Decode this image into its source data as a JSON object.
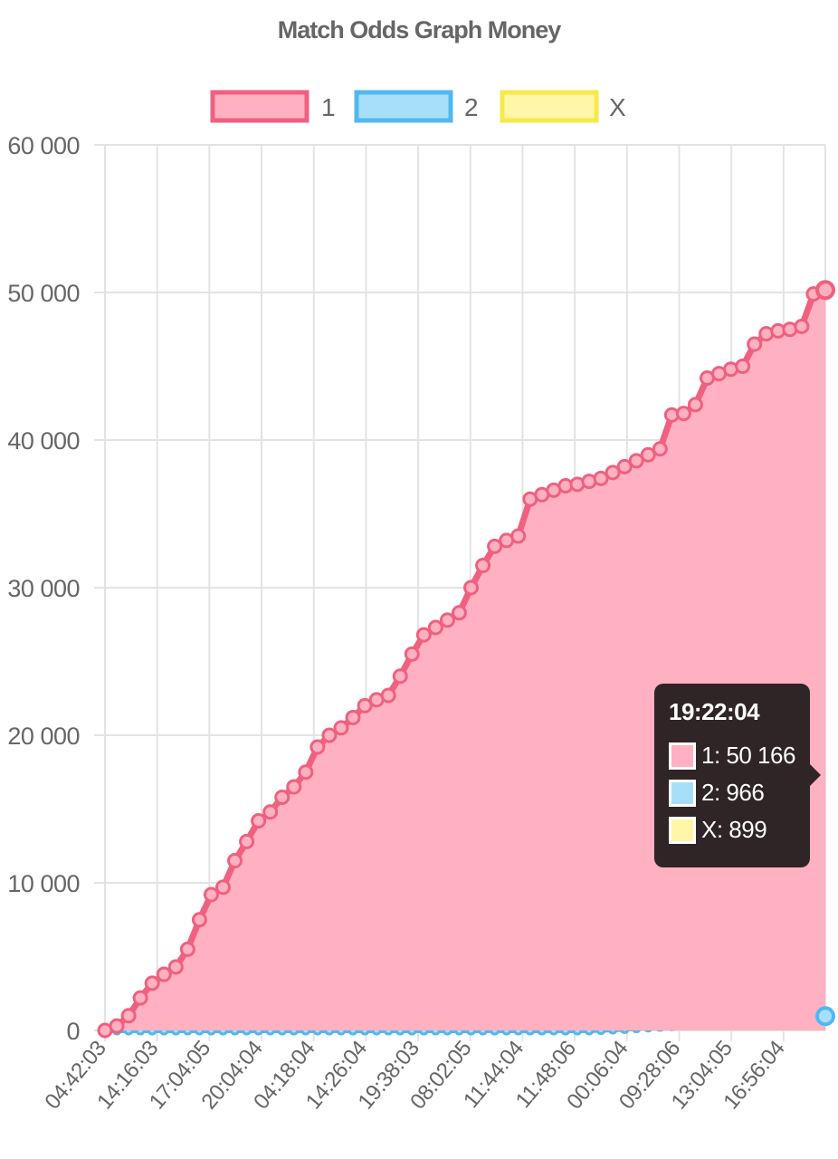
{
  "chart_data": {
    "type": "area",
    "title": "Match Odds Graph Money",
    "legend_position": "top",
    "grid": true,
    "xlabel": "",
    "ylabel": "",
    "ylim": [
      0,
      60000
    ],
    "yticks": [
      "60 000",
      "50 000",
      "40 000",
      "30 000",
      "20 000",
      "10 000",
      "0"
    ],
    "x_tick_labels": [
      "04:42:03",
      "14:16:03",
      "17:04:05",
      "20:04:04",
      "04:18:04",
      "14:26:04",
      "19:38:03",
      "08:02:05",
      "11:44:04",
      "11:48:06",
      "00:06:04",
      "09:28:06",
      "13:04:05",
      "16:56:04"
    ],
    "series": [
      {
        "name": "1",
        "border_color": "#f0607f",
        "fill_color": "#ffb1c1",
        "values": [
          0,
          300,
          1000,
          2200,
          3200,
          3800,
          4300,
          5500,
          7500,
          9200,
          9700,
          11500,
          12800,
          14200,
          14800,
          15800,
          16500,
          17500,
          19200,
          20000,
          20500,
          21200,
          22000,
          22400,
          22700,
          24000,
          25500,
          26800,
          27300,
          27800,
          28300,
          30000,
          31500,
          32800,
          33200,
          33500,
          36000,
          36300,
          36600,
          36900,
          37000,
          37200,
          37400,
          37800,
          38200,
          38600,
          39000,
          39400,
          41700,
          41800,
          42400,
          44200,
          44500,
          44800,
          45000,
          46500,
          47200,
          47400,
          47500,
          47700,
          49900,
          50166
        ]
      },
      {
        "name": "2",
        "border_color": "#52b8ef",
        "fill_color": "#a8dff8",
        "values": [
          0,
          0,
          0,
          0,
          0,
          0,
          0,
          0,
          0,
          0,
          0,
          0,
          0,
          0,
          0,
          0,
          0,
          0,
          0,
          0,
          0,
          0,
          0,
          0,
          0,
          0,
          0,
          0,
          0,
          0,
          0,
          0,
          0,
          0,
          0,
          0,
          0,
          0,
          0,
          0,
          0,
          10,
          30,
          60,
          100,
          150,
          200,
          250,
          300,
          340,
          380,
          420,
          460,
          500,
          540,
          580,
          640,
          700,
          760,
          830,
          900,
          966
        ]
      },
      {
        "name": "X",
        "border_color": "#f7e94a",
        "fill_color": "#fff6a8",
        "values": [
          0,
          0,
          0,
          0,
          0,
          0,
          0,
          0,
          0,
          0,
          0,
          0,
          0,
          0,
          0,
          0,
          0,
          0,
          0,
          0,
          0,
          0,
          0,
          0,
          0,
          0,
          0,
          0,
          0,
          0,
          0,
          0,
          0,
          0,
          0,
          0,
          0,
          0,
          0,
          0,
          0,
          10,
          30,
          60,
          100,
          150,
          200,
          250,
          300,
          340,
          380,
          420,
          460,
          500,
          540,
          580,
          620,
          680,
          740,
          800,
          860,
          899
        ]
      }
    ]
  },
  "tooltip": {
    "title": "19:22:04",
    "rows": [
      {
        "label": "1: 50 166",
        "color": "#ffb1c1",
        "border": "#f0607f"
      },
      {
        "label": "2: 966",
        "color": "#a8dff8",
        "border": "#52b8ef"
      },
      {
        "label": "X: 899",
        "color": "#fff6a8",
        "border": "#f7e94a"
      }
    ]
  }
}
